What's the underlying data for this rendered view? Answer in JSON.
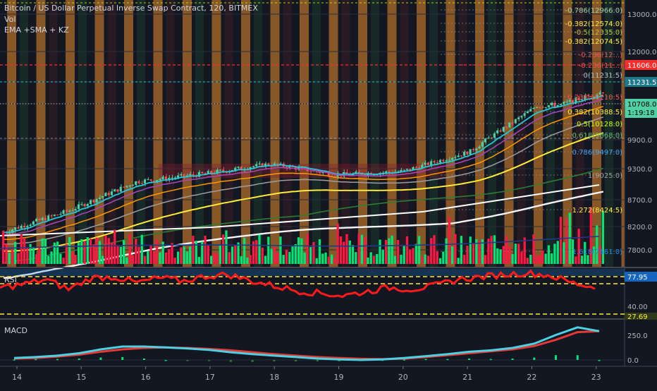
{
  "header": {
    "title": "Bitcoin / US Dollar Perpetual Inverse Swap Contract, 120, BITMEX",
    "indicator_vol": "Vol",
    "indicator_ma": "EMA +SMA + KZ"
  },
  "price_axis": {
    "ticks": [
      "13000.0",
      "12000.0",
      "11231.5",
      "10708.0",
      "9900.0",
      "9300.0",
      "8700.0",
      "8200.0",
      "7800.0"
    ],
    "current_price_label": "10708.0",
    "countdown_label": "1:19:18",
    "red_line_label": "11606.0",
    "teal_line_label": "11231.5"
  },
  "rsi_axis": {
    "label": "RSI",
    "ticks": [
      "77.95",
      "40.00",
      "27.69"
    ]
  },
  "macd_axis": {
    "label": "MACD",
    "ticks": [
      "250.0",
      "0.0"
    ]
  },
  "time_axis": {
    "ticks": [
      "14",
      "15",
      "16",
      "17",
      "18",
      "19",
      "20",
      "21",
      "22",
      "23"
    ]
  },
  "fib_labels": [
    "-0.786(12966.0)",
    "-0.382(12574.0)",
    "-0.5(12335.0)",
    "-0.382(12074.5)",
    "-0.236(12...)",
    "-0.236(11...)",
    "0(11231.5)",
    "0.236(10710.5)",
    "0.382(10388.5)",
    "0.5(10128.0)",
    "0.618(9868.0)",
    "0.786(9497.0)",
    "1(9025.0)",
    "1.272(8424.5)",
    "1.618(7661.0)"
  ],
  "colors": {
    "background": "#131722",
    "up_candle": "#4fd1a5",
    "down_candle": "#ef5350",
    "volume_up": "#00e676",
    "volume_down": "#ff1744",
    "orange_bands": "#e98c2e",
    "rsi_line": "#ff1a1a",
    "macd_line": "#4dd0e1",
    "signal_line": "#e53935",
    "teal": "#26c6da",
    "red_level": "#ff2b2b"
  },
  "chart_data": [
    {
      "type": "line",
      "name": "price",
      "x": [
        "14",
        "15",
        "16",
        "17",
        "18",
        "19",
        "20",
        "21",
        "22",
        "23"
      ],
      "close": [
        8100,
        8500,
        9050,
        9200,
        9400,
        9180,
        9250,
        9650,
        10650,
        10708
      ],
      "ylim": [
        7600,
        13200
      ],
      "log_scale": false
    },
    {
      "type": "line",
      "name": "RSI",
      "ticks": [
        77.95,
        40.0,
        27.69
      ],
      "values": [
        62,
        66,
        72,
        60,
        74,
        75,
        68,
        74,
        70,
        76,
        78,
        70,
        64,
        58,
        55,
        52,
        57,
        62,
        60,
        64,
        72,
        75,
        78,
        80,
        77,
        68,
        62
      ]
    },
    {
      "type": "line",
      "name": "MACD",
      "ticks": [
        250.0,
        0.0
      ],
      "macd": [
        20,
        30,
        45,
        70,
        110,
        140,
        140,
        130,
        120,
        105,
        80,
        60,
        45,
        30,
        15,
        5,
        0,
        5,
        20,
        40,
        60,
        85,
        100,
        125,
        170,
        260,
        340,
        300
      ],
      "signal": [
        15,
        20,
        35,
        55,
        85,
        110,
        125,
        130,
        125,
        115,
        100,
        80,
        60,
        45,
        30,
        20,
        12,
        8,
        15,
        30,
        50,
        70,
        90,
        110,
        145,
        210,
        290,
        300
      ]
    }
  ]
}
